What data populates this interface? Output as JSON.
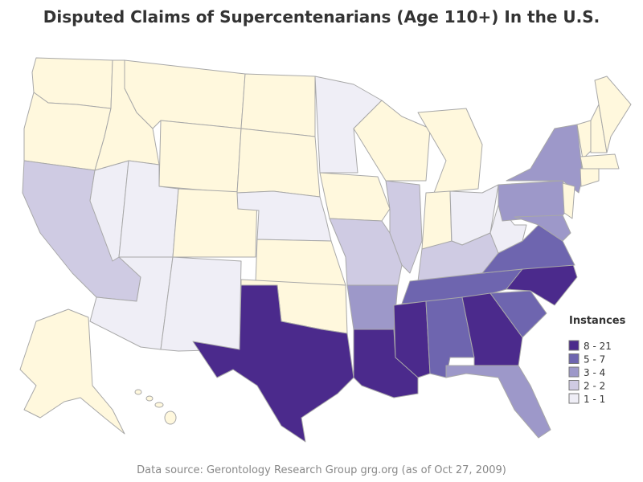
{
  "title": "Disputed Claims of Supercentenarians (Age 110+) In the U.S.",
  "legend": {
    "title": "Instances",
    "items": [
      {
        "label": "8 - 21",
        "color": "#4b2a8c"
      },
      {
        "label": "5 - 7",
        "color": "#6e65af"
      },
      {
        "label": "3 - 4",
        "color": "#9d98c9"
      },
      {
        "label": "2 - 2",
        "color": "#cfcbe3"
      },
      {
        "label": "1 - 1",
        "color": "#efeef6"
      }
    ]
  },
  "source": "Data source: Gerontology Research Group grg.org (as of Oct 27, 2009)"
}
